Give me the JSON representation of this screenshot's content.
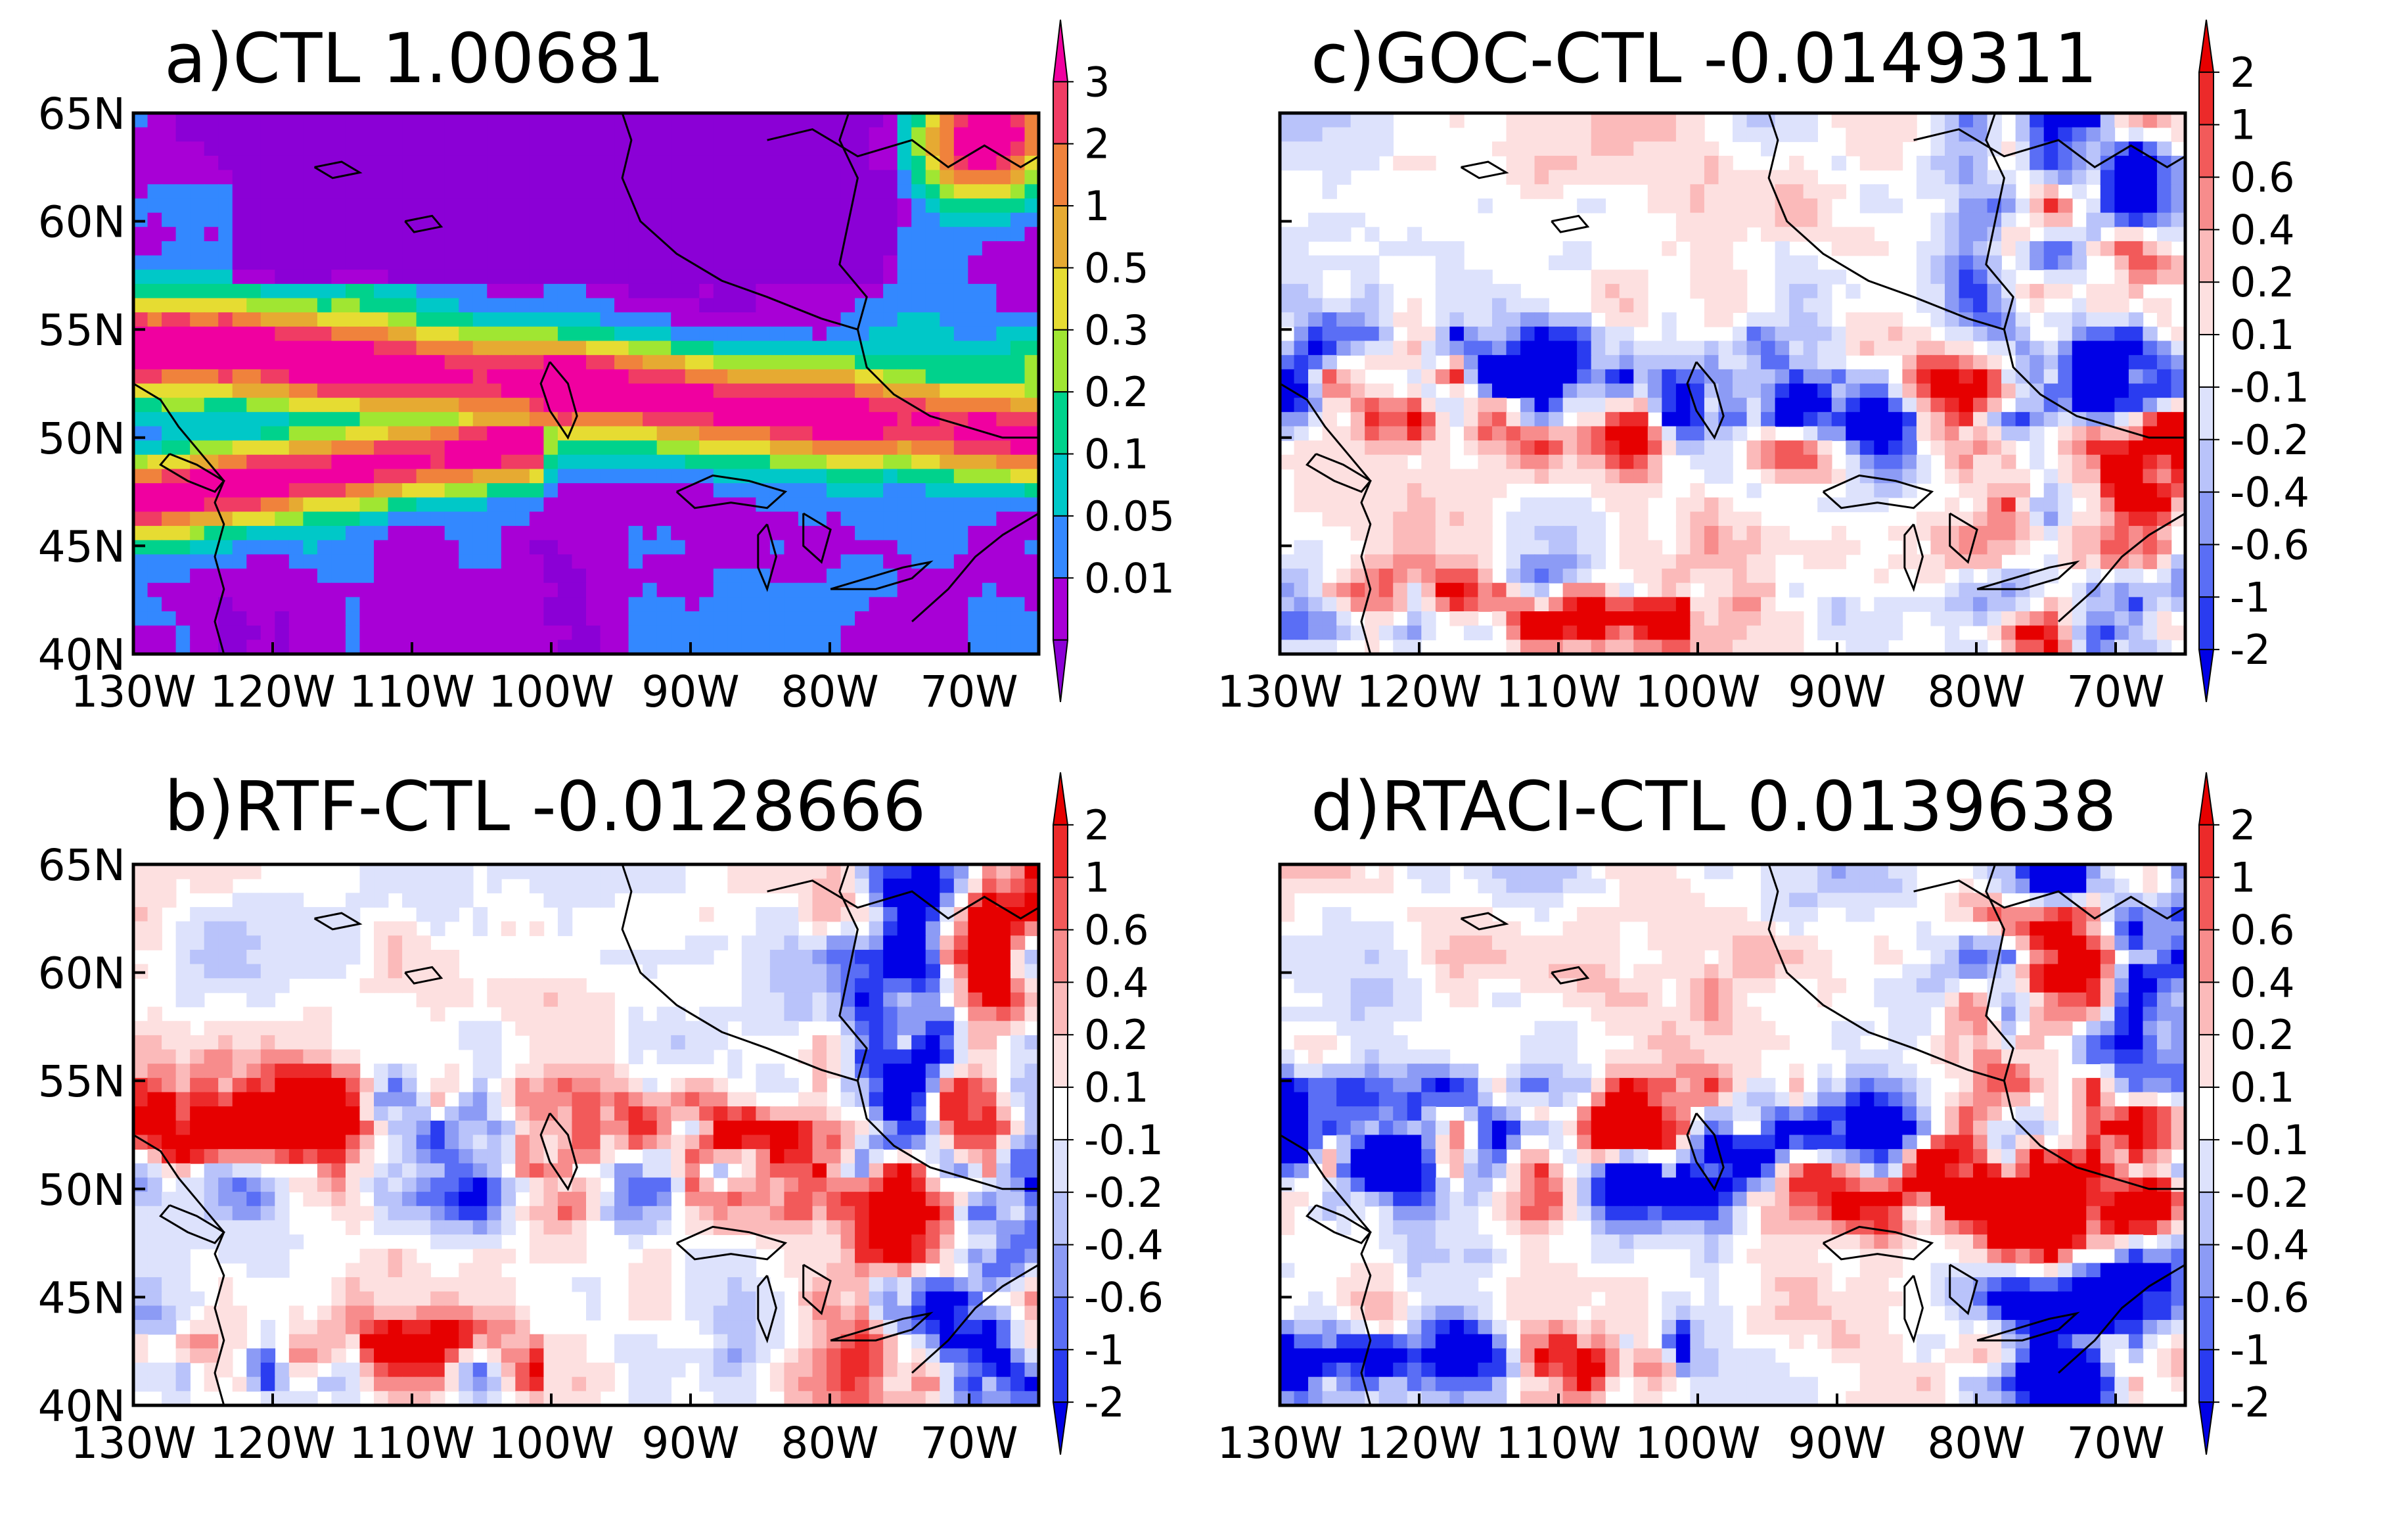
{
  "panels": [
    {
      "title": "a)CTL  1.00681",
      "kind": "field",
      "x_ticks": [
        "130W",
        "120W",
        "110W",
        "100W",
        "90W",
        "80W",
        "70W"
      ],
      "y_ticks": [
        "65N",
        "60N",
        "55N",
        "50N",
        "45N",
        "40N"
      ],
      "colorbar_labels": [
        "3",
        "2",
        "1",
        "0.5",
        "0.3",
        "0.2",
        "0.1",
        "0.05",
        "0.01"
      ],
      "colors": [
        "#8b00d6",
        "#a800d6",
        "#3388ff",
        "#00c8c8",
        "#00d28c",
        "#a0e632",
        "#e6dc32",
        "#e6aa32",
        "#f0823c",
        "#f03c64",
        "#f000a0"
      ]
    },
    {
      "title": "b)RTF-CTL  -0.0128666",
      "kind": "diff",
      "x_ticks": [
        "130W",
        "120W",
        "110W",
        "100W",
        "90W",
        "80W",
        "70W"
      ],
      "y_ticks": [
        "65N",
        "60N",
        "55N",
        "50N",
        "45N",
        "40N"
      ],
      "colorbar_labels": [
        "2",
        "1",
        "0.6",
        "0.4",
        "0.2",
        "0.1",
        "-0.1",
        "-0.2",
        "-0.4",
        "-0.6",
        "-1",
        "-2"
      ]
    },
    {
      "title": "c)GOC-CTL  -0.0149311",
      "kind": "diff",
      "x_ticks": [
        "130W",
        "120W",
        "110W",
        "100W",
        "90W",
        "80W",
        "70W"
      ],
      "y_ticks": [],
      "colorbar_labels": [
        "2",
        "1",
        "0.6",
        "0.4",
        "0.2",
        "0.1",
        "-0.1",
        "-0.2",
        "-0.4",
        "-0.6",
        "-1",
        "-2"
      ]
    },
    {
      "title": "d)RTACI-CTL  0.0139638",
      "kind": "diff",
      "x_ticks": [
        "130W",
        "120W",
        "110W",
        "100W",
        "90W",
        "80W",
        "70W"
      ],
      "y_ticks": [],
      "colorbar_labels": [
        "2",
        "1",
        "0.6",
        "0.4",
        "0.2",
        "0.1",
        "-0.1",
        "-0.2",
        "-0.4",
        "-0.6",
        "-1",
        "-2"
      ]
    }
  ],
  "diff_colors": [
    "#0000e6",
    "#2a3cf0",
    "#5a6ef5",
    "#8c9bf5",
    "#b9c3fa",
    "#dde2fc",
    "#ffffff",
    "#fde0e0",
    "#fbbaba",
    "#f78c8c",
    "#f25a5a",
    "#ec2a2a",
    "#e60000"
  ],
  "coastline_color": "#000000"
}
